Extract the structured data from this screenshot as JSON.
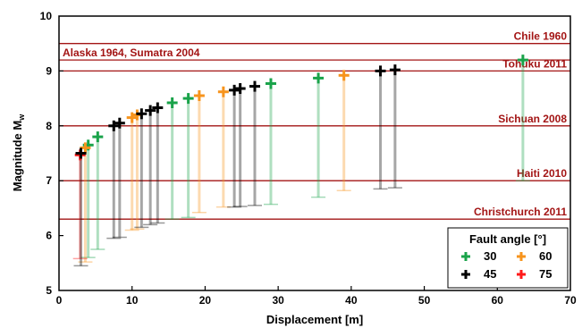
{
  "chart_data": {
    "type": "scatter",
    "xlabel": "Displacement [m]",
    "ylabel_main": "Magnitude M",
    "ylabel_sub": "w",
    "xlim": [
      0,
      70
    ],
    "ylim": [
      5,
      10
    ],
    "xticks": [
      "0",
      "10",
      "20",
      "30",
      "40",
      "50",
      "60",
      "70"
    ],
    "yticks": [
      "5",
      "6",
      "7",
      "8",
      "9",
      "10"
    ],
    "grid": false,
    "legend_position": "bottom-right",
    "legend_title": "Fault angle [°]",
    "reference_lines": [
      {
        "label": "Chile 1960",
        "y": 9.5
      },
      {
        "label": "Alaska 1964, Sumatra 2004",
        "y": 9.2
      },
      {
        "label": "Tohuku 2011",
        "y": 9.0
      },
      {
        "label": "Sichuan 2008",
        "y": 8.0
      },
      {
        "label": "Haiti 2010",
        "y": 7.0
      },
      {
        "label": "Christchurch 2011",
        "y": 6.3
      }
    ],
    "reference_color": "#a31515",
    "series": [
      {
        "name": "30",
        "color": "#1aa34a",
        "points": [
          {
            "x": 4.0,
            "y": 7.65,
            "low": 5.6
          },
          {
            "x": 5.3,
            "y": 7.8,
            "low": 5.75
          },
          {
            "x": 15.5,
            "y": 8.42,
            "low": 6.3
          },
          {
            "x": 17.7,
            "y": 8.5,
            "low": 6.33
          },
          {
            "x": 29.0,
            "y": 8.77,
            "low": 6.57
          },
          {
            "x": 35.5,
            "y": 8.87,
            "low": 6.7
          },
          {
            "x": 63.5,
            "y": 9.2,
            "low": 7.0
          }
        ]
      },
      {
        "name": "45",
        "color": "#000000",
        "points": [
          {
            "x": 3.0,
            "y": 7.5,
            "low": 5.45
          },
          {
            "x": 7.5,
            "y": 8.0,
            "low": 5.95
          },
          {
            "x": 8.3,
            "y": 8.05,
            "low": 5.97
          },
          {
            "x": 11.3,
            "y": 8.22,
            "low": 6.15
          },
          {
            "x": 12.5,
            "y": 8.28,
            "low": 6.2
          },
          {
            "x": 13.5,
            "y": 8.33,
            "low": 6.23
          },
          {
            "x": 24.0,
            "y": 8.65,
            "low": 6.52
          },
          {
            "x": 24.8,
            "y": 8.68,
            "low": 6.53
          },
          {
            "x": 26.8,
            "y": 8.72,
            "low": 6.55
          },
          {
            "x": 44.0,
            "y": 9.0,
            "low": 6.85
          },
          {
            "x": 46.0,
            "y": 9.02,
            "low": 6.87
          }
        ]
      },
      {
        "name": "60",
        "color": "#f7941d",
        "points": [
          {
            "x": 3.6,
            "y": 7.6,
            "low": 5.52
          },
          {
            "x": 10.0,
            "y": 8.15,
            "low": 6.1
          },
          {
            "x": 10.7,
            "y": 8.2,
            "low": 6.12
          },
          {
            "x": 19.2,
            "y": 8.55,
            "low": 6.42
          },
          {
            "x": 22.5,
            "y": 8.62,
            "low": 6.52
          },
          {
            "x": 39.0,
            "y": 8.92,
            "low": 6.82
          }
        ]
      },
      {
        "name": "75",
        "color": "#ff1a1a",
        "points": [
          {
            "x": 2.9,
            "y": 7.47,
            "low": 5.58
          }
        ]
      }
    ]
  }
}
